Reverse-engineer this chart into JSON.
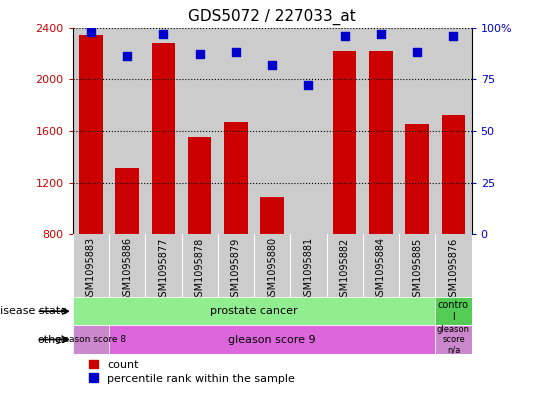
{
  "title": "GDS5072 / 227033_at",
  "samples": [
    "GSM1095883",
    "GSM1095886",
    "GSM1095877",
    "GSM1095878",
    "GSM1095879",
    "GSM1095880",
    "GSM1095881",
    "GSM1095882",
    "GSM1095884",
    "GSM1095885",
    "GSM1095876"
  ],
  "bar_values": [
    2340,
    1310,
    2280,
    1555,
    1670,
    1090,
    760,
    2220,
    2220,
    1650,
    1720
  ],
  "percentile_values": [
    98,
    86,
    97,
    87,
    88,
    82,
    72,
    96,
    97,
    88,
    96
  ],
  "y_min": 800,
  "y_max": 2400,
  "y_ticks": [
    800,
    1200,
    1600,
    2000,
    2400
  ],
  "y2_ticks": [
    0,
    25,
    50,
    75,
    100
  ],
  "bar_color": "#CC0000",
  "dot_color": "#0000CC",
  "col_bg_color": "#CCCCCC",
  "plot_bg": "#FFFFFF",
  "tick_color_left": "#CC0000",
  "tick_color_right": "#0000CC",
  "title_fontsize": 11,
  "disease_state_green": "#90EE90",
  "disease_state_green_dark": "#55CC55",
  "other_pink": "#DD66DD",
  "other_pink_light": "#CC88CC",
  "gleason8_color": "#CC88CC",
  "gleason9_color": "#DD66DD",
  "gleasonNA_color": "#CC88CC"
}
